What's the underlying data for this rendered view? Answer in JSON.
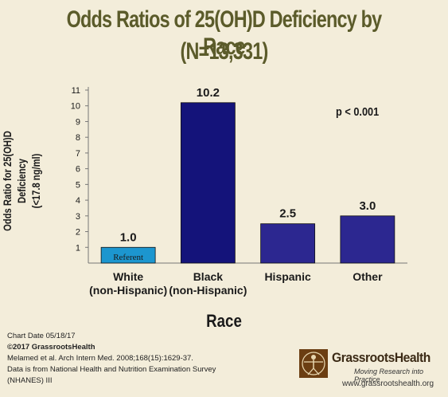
{
  "chart_data": {
    "type": "bar",
    "title": "Odds Ratios of 25(OH)D Deficiency by Race",
    "subtitle": "(N=13,331)",
    "categories": [
      [
        "White",
        "(non-Hispanic)"
      ],
      [
        "Black",
        "(non-Hispanic)"
      ],
      [
        "Hispanic"
      ],
      [
        "Other"
      ]
    ],
    "values": [
      1.0,
      10.2,
      2.5,
      3.0
    ],
    "value_labels": [
      "1.0",
      "10.2",
      "2.5",
      "3.0"
    ],
    "bar_inner_label": "Referent",
    "bar_colors": [
      "#1c96cf",
      "#14137a",
      "#2c2790",
      "#2c2790"
    ],
    "xlabel": "Race",
    "ylabel_line1": "Odds Ratio for 25(OH)D Deficiency",
    "ylabel_line2": "(<17.8 ng/ml)",
    "ylim": [
      0,
      11
    ],
    "yticks": [
      "1",
      "2",
      "3",
      "4",
      "5",
      "6",
      "7",
      "8",
      "9",
      "10",
      "11"
    ],
    "annotation": "p < 0.001",
    "grid": false
  },
  "footer": {
    "chart_date": "Chart Date 05/18/17",
    "copyright": "©2017 GrassrootsHealth",
    "citation": "Melamed et al. Arch Intern Med. 2008;168(15):1629-37.",
    "source_line1": "Data is from National Health and Nutrition Examination Survey",
    "source_line2": "(NHANES) III"
  },
  "logo": {
    "name": "GrassrootsHealth",
    "tagline": "Moving Research into Practice",
    "url": "www.grassrootshealth.org",
    "icon": "vitruvian-man-icon"
  }
}
